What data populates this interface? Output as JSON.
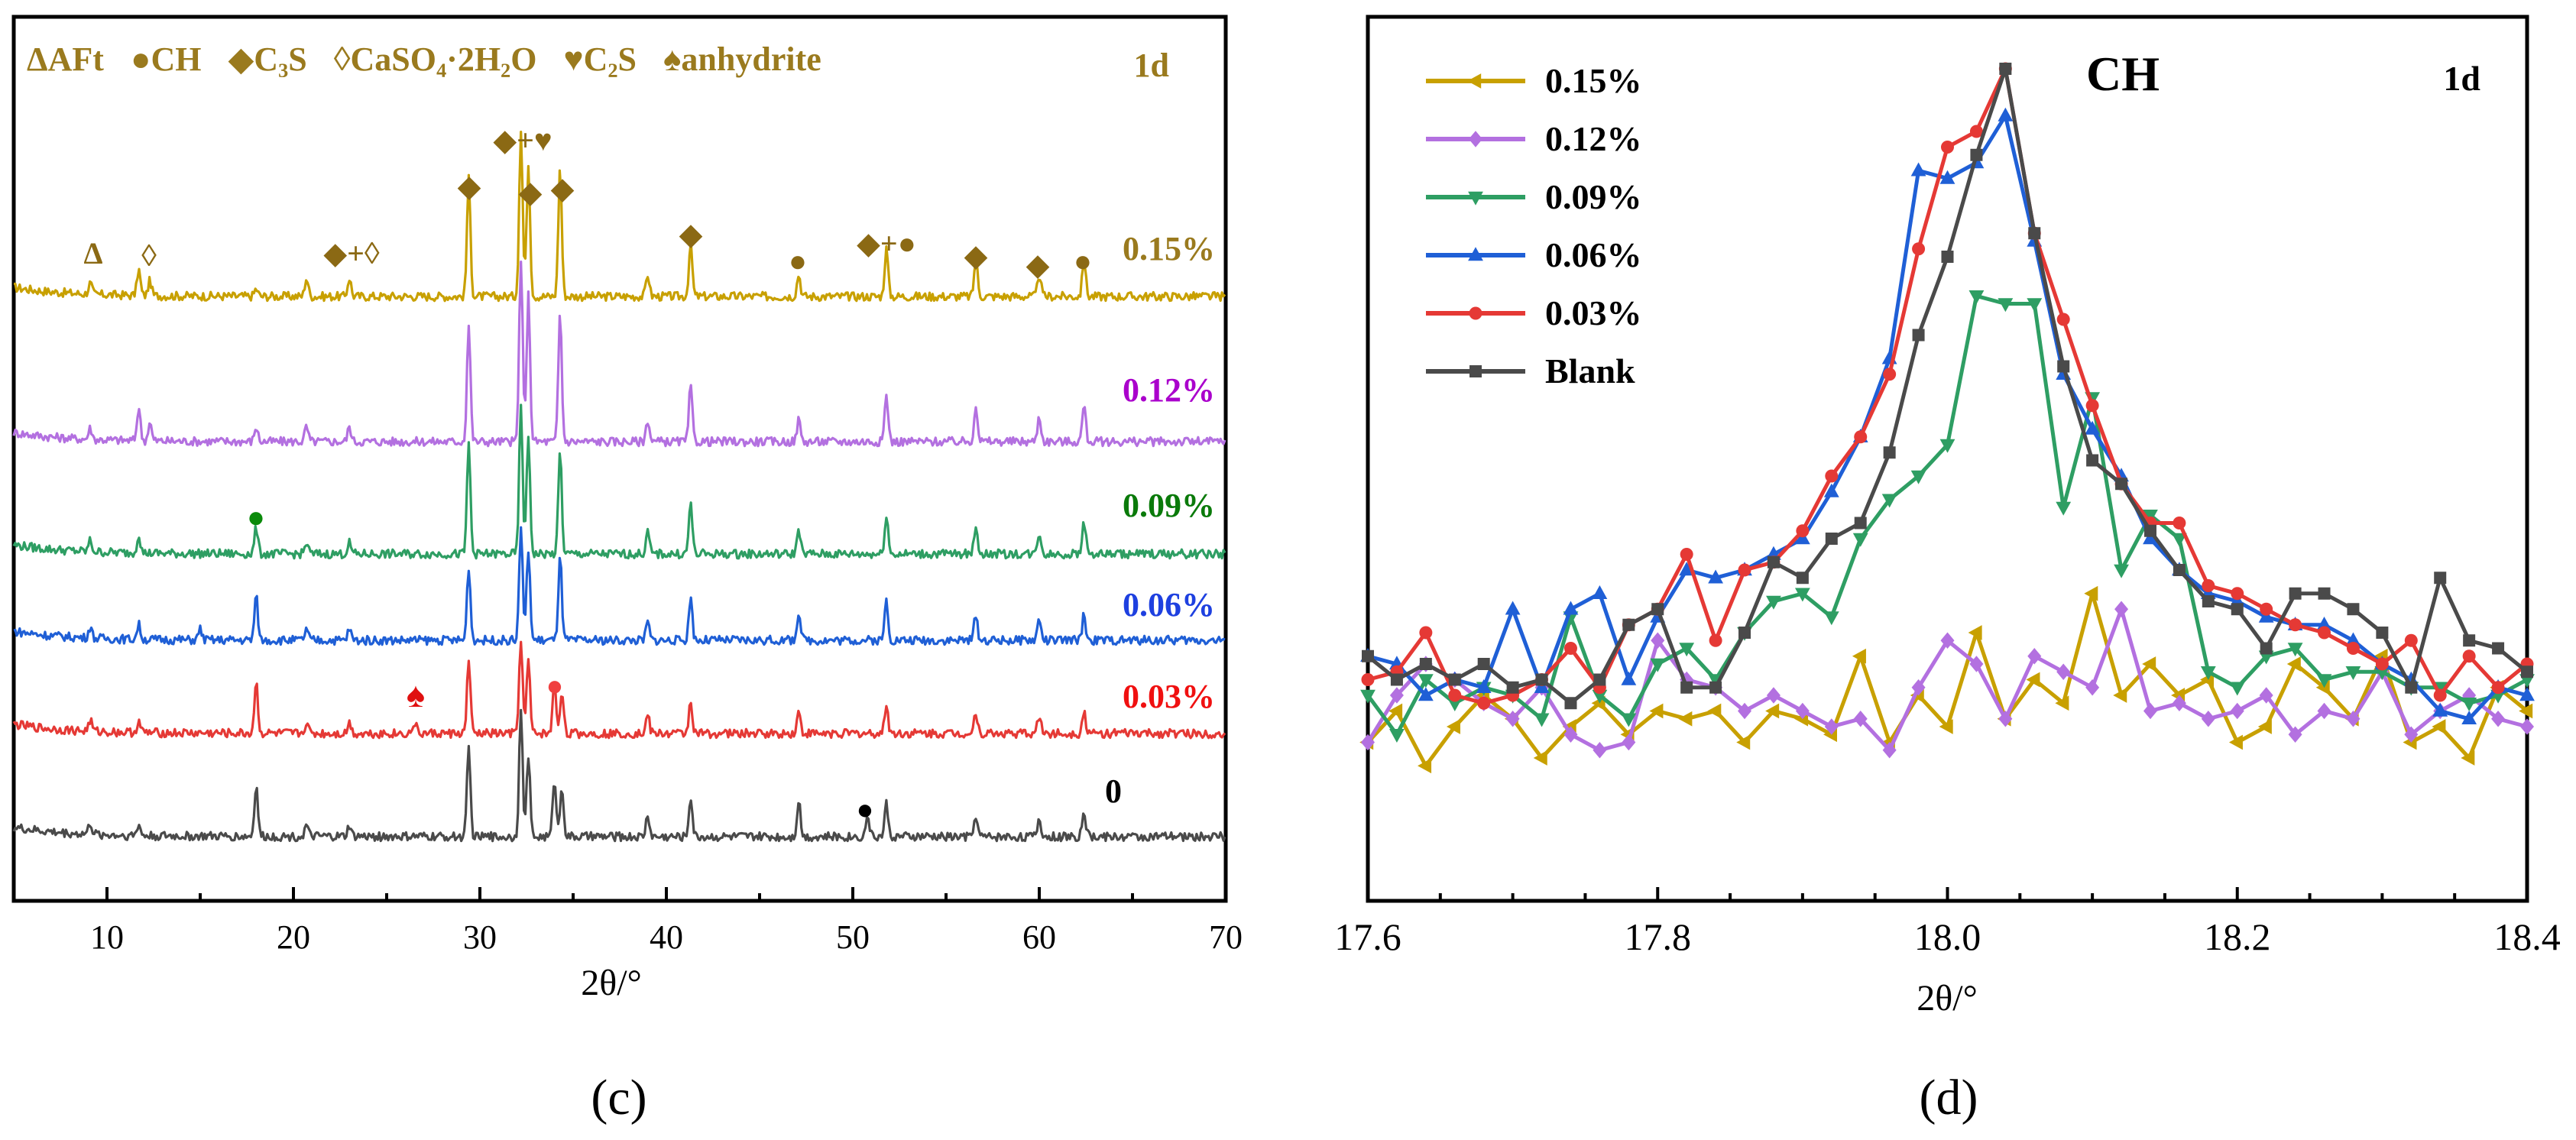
{
  "colors": {
    "gold": "#C8A000",
    "brownLabel": "#9A7A1E",
    "purple": "#B370E0",
    "purpleLabel": "#AA00CC",
    "green": "#2E9E63",
    "greenLabel": "#0A7A0A",
    "blue": "#1F5FD6",
    "blueLabel": "#1E40E0",
    "red": "#E53935",
    "redLabel": "#F01010",
    "gray": "#4A4A4A",
    "black": "#000000",
    "marker": "#8B6914"
  },
  "panel_c": {
    "caption": "(c)",
    "legend": {
      "aft": "ΔAFt",
      "ch": "●CH",
      "c3s": "◆C₃S",
      "gypsum": "◊CaSO₄·2H₂O",
      "c2s": "♥C₂S",
      "anhydrite": "♠anhydrite"
    },
    "age": "1d",
    "peak_labels": [
      "Δ",
      "◊",
      "◆+◊",
      "◆",
      "◆+♥",
      "◆",
      "◆",
      "◆",
      "●",
      "◆+●",
      "◆",
      "◆",
      "●"
    ],
    "extra_markers": {
      "green_dot": "●",
      "spade": "♠",
      "red_dot": "●",
      "black_dot": "●"
    }
  },
  "panel_d": {
    "caption": "(d)",
    "title": "CH",
    "age": "1d"
  },
  "chart_data": [
    {
      "type": "line",
      "title": "",
      "xlabel": "2θ/°",
      "ylabel": "",
      "xlim": [
        5,
        70
      ],
      "xticks": [
        10,
        20,
        30,
        40,
        50,
        60,
        70
      ],
      "series": [
        {
          "name": "0.15%",
          "offset": 5,
          "noise": 0.12,
          "peaks": [
            [
              9.1,
              0.3
            ],
            [
              11.7,
              0.7
            ],
            [
              12.3,
              0.4
            ],
            [
              18.0,
              0.2
            ],
            [
              20.7,
              0.5
            ],
            [
              23.0,
              0.5
            ],
            [
              29.4,
              3.2
            ],
            [
              32.2,
              4.5
            ],
            [
              32.6,
              3.6
            ],
            [
              34.3,
              3.5
            ],
            [
              39.0,
              0.6
            ],
            [
              41.3,
              1.4
            ],
            [
              47.1,
              0.6
            ],
            [
              51.8,
              1.3
            ],
            [
              56.6,
              1.0
            ],
            [
              60.0,
              0.6
            ],
            [
              62.4,
              1.0
            ]
          ]
        },
        {
          "name": "0.12%",
          "offset": 4,
          "noise": 0.12,
          "peaks": [
            [
              9.1,
              0.3
            ],
            [
              11.7,
              0.9
            ],
            [
              12.3,
              0.5
            ],
            [
              18.0,
              0.4
            ],
            [
              20.7,
              0.4
            ],
            [
              23.0,
              0.4
            ],
            [
              29.4,
              3.2
            ],
            [
              32.2,
              5.0
            ],
            [
              32.6,
              4.0
            ],
            [
              34.3,
              3.5
            ],
            [
              39.0,
              0.6
            ],
            [
              41.3,
              1.5
            ],
            [
              47.1,
              0.6
            ],
            [
              51.8,
              1.3
            ],
            [
              56.6,
              1.0
            ],
            [
              60.0,
              0.7
            ],
            [
              62.4,
              1.0
            ]
          ]
        },
        {
          "name": "0.09%",
          "offset": 3,
          "noise": 0.12,
          "peaks": [
            [
              9.1,
              0.3
            ],
            [
              11.7,
              0.5
            ],
            [
              18.0,
              0.7
            ],
            [
              20.7,
              0.3
            ],
            [
              23.0,
              0.3
            ],
            [
              29.4,
              3.0
            ],
            [
              32.2,
              4.0
            ],
            [
              32.6,
              3.2
            ],
            [
              34.3,
              2.8
            ],
            [
              39.0,
              0.6
            ],
            [
              41.3,
              1.4
            ],
            [
              47.1,
              0.7
            ],
            [
              51.8,
              1.1
            ],
            [
              56.6,
              0.8
            ],
            [
              60.0,
              0.6
            ],
            [
              62.4,
              0.9
            ]
          ]
        },
        {
          "name": "0.06%",
          "offset": 2.2,
          "noise": 0.12,
          "peaks": [
            [
              9.1,
              0.3
            ],
            [
              11.7,
              0.4
            ],
            [
              15.0,
              0.3
            ],
            [
              18.0,
              1.2
            ],
            [
              20.7,
              0.3
            ],
            [
              23.0,
              0.3
            ],
            [
              29.4,
              2.0
            ],
            [
              32.2,
              3.1
            ],
            [
              32.6,
              2.5
            ],
            [
              34.3,
              2.3
            ],
            [
              39.0,
              0.5
            ],
            [
              41.3,
              1.2
            ],
            [
              47.1,
              0.8
            ],
            [
              51.8,
              1.1
            ],
            [
              56.6,
              0.7
            ],
            [
              60.0,
              0.6
            ],
            [
              62.4,
              0.7
            ]
          ]
        },
        {
          "name": "0.03%",
          "offset": 1.2,
          "noise": 0.12,
          "peaks": [
            [
              9.1,
              0.3
            ],
            [
              11.7,
              0.3
            ],
            [
              18.0,
              1.4
            ],
            [
              20.7,
              0.3
            ],
            [
              23.0,
              0.3
            ],
            [
              26.5,
              0.3
            ],
            [
              29.4,
              2.0
            ],
            [
              32.2,
              2.6
            ],
            [
              32.6,
              2.0
            ],
            [
              34.0,
              1.4
            ],
            [
              34.4,
              1.2
            ],
            [
              39.0,
              0.5
            ],
            [
              41.3,
              0.9
            ],
            [
              47.1,
              0.6
            ],
            [
              51.8,
              0.8
            ],
            [
              56.6,
              0.6
            ],
            [
              60.0,
              0.5
            ],
            [
              62.4,
              0.6
            ]
          ]
        },
        {
          "name": "0",
          "offset": 0,
          "noise": 0.12,
          "peaks": [
            [
              9.1,
              0.3
            ],
            [
              11.7,
              0.3
            ],
            [
              18.0,
              1.4
            ],
            [
              20.7,
              0.3
            ],
            [
              23.0,
              0.3
            ],
            [
              29.4,
              2.4
            ],
            [
              32.2,
              3.4
            ],
            [
              32.6,
              2.2
            ],
            [
              34.0,
              1.6
            ],
            [
              34.4,
              1.4
            ],
            [
              39.0,
              0.6
            ],
            [
              41.3,
              1.1
            ],
            [
              47.1,
              1.0
            ],
            [
              50.8,
              0.6
            ],
            [
              51.8,
              0.9
            ],
            [
              56.6,
              0.6
            ],
            [
              60.0,
              0.5
            ],
            [
              62.4,
              0.7
            ]
          ]
        }
      ]
    },
    {
      "type": "line",
      "title": "CH",
      "xlabel": "2θ/°",
      "ylabel": "",
      "xlim": [
        17.6,
        18.4
      ],
      "xticks": [
        17.6,
        17.8,
        18.0,
        18.2,
        18.4
      ],
      "ylim": [
        0,
        100
      ],
      "x": [
        17.6,
        17.62,
        17.64,
        17.66,
        17.68,
        17.7,
        17.72,
        17.74,
        17.76,
        17.78,
        17.8,
        17.82,
        17.84,
        17.86,
        17.88,
        17.9,
        17.92,
        17.94,
        17.96,
        17.98,
        18.0,
        18.02,
        18.04,
        18.06,
        18.08,
        18.1,
        18.12,
        18.14,
        18.16,
        18.18,
        18.2,
        18.22,
        18.24,
        18.26,
        18.28,
        18.3,
        18.32,
        18.34,
        18.36,
        18.38,
        18.4
      ],
      "series": [
        {
          "name": "0.15%",
          "marker": "triangle-left",
          "values": [
            14,
            18,
            11,
            16,
            20,
            17,
            12,
            16,
            19,
            15,
            18,
            17,
            18,
            14,
            18,
            17,
            15,
            25,
            14,
            20,
            16,
            28,
            17,
            22,
            19,
            33,
            20,
            24,
            20,
            22,
            14,
            16,
            24,
            21,
            17,
            25,
            14,
            16,
            12,
            21,
            18
          ]
        },
        {
          "name": "0.12%",
          "marker": "diamond",
          "values": [
            14,
            20,
            24,
            22,
            19,
            17,
            21,
            15,
            13,
            14,
            27,
            22,
            21,
            18,
            20,
            18,
            16,
            17,
            13,
            21,
            27,
            24,
            17,
            25,
            23,
            21,
            31,
            18,
            19,
            17,
            18,
            20,
            15,
            18,
            17,
            23,
            15,
            18,
            20,
            17,
            16
          ]
        },
        {
          "name": "0.09%",
          "marker": "triangle-down",
          "values": [
            20,
            15,
            22,
            19,
            21,
            20,
            17,
            30,
            20,
            17,
            24,
            26,
            22,
            28,
            32,
            33,
            30,
            40,
            45,
            48,
            52,
            71,
            70,
            70,
            44,
            58,
            36,
            43,
            40,
            23,
            21,
            25,
            26,
            22,
            23,
            23,
            21,
            21,
            19,
            20,
            22
          ]
        },
        {
          "name": "0.06%",
          "marker": "triangle-up",
          "values": [
            25,
            24,
            20,
            22,
            21,
            31,
            21,
            31,
            33,
            22,
            30,
            36,
            35,
            36,
            38,
            40,
            46,
            53,
            63,
            87,
            86,
            88,
            94,
            78,
            61,
            54,
            48,
            40,
            36,
            33,
            32,
            30,
            29,
            29,
            27,
            24,
            22,
            18,
            17,
            21,
            20
          ]
        },
        {
          "name": "0.03%",
          "marker": "circle",
          "values": [
            22,
            23,
            28,
            20,
            19,
            20,
            22,
            26,
            21,
            29,
            31,
            38,
            27,
            36,
            37,
            41,
            48,
            53,
            61,
            77,
            90,
            92,
            100,
            79,
            68,
            57,
            47,
            42,
            42,
            34,
            33,
            31,
            29,
            28,
            26,
            24,
            27,
            20,
            25,
            21,
            24
          ]
        },
        {
          "name": "Blank",
          "marker": "square",
          "values": [
            25,
            22,
            24,
            22,
            24,
            21,
            22,
            19,
            22,
            29,
            31,
            21,
            21,
            28,
            37,
            35,
            40,
            42,
            51,
            66,
            76,
            89,
            100,
            79,
            62,
            50,
            47,
            41,
            36,
            32,
            31,
            26,
            33,
            33,
            31,
            28,
            21,
            35,
            27,
            26,
            23
          ]
        }
      ]
    }
  ]
}
